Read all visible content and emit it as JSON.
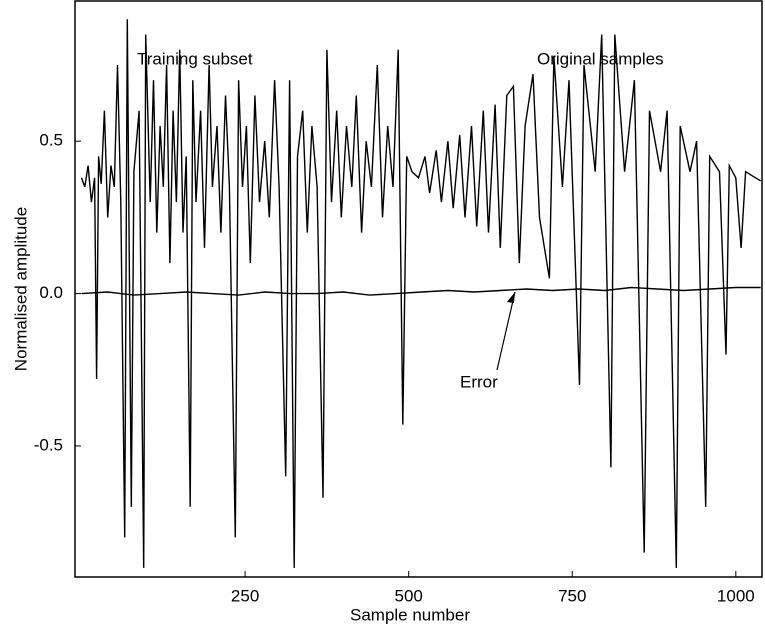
{
  "chart_data": {
    "type": "line",
    "x_label": "Sample number",
    "y_label": "Normalised amplitude",
    "annotations": [
      "Training subset"
    ],
    "xlim": [
      -10,
      1040
    ],
    "xticks": [
      250,
      500,
      750,
      1000
    ],
    "ylim": [
      -0.93,
      0.96
    ],
    "yticks": [
      0.5,
      {
        "value": 0,
        "label": "0.0"
      },
      -0.5
    ],
    "series": [
      {
        "name": "Original samples",
        "color": "#000000",
        "x": [
          0,
          5,
          10,
          15,
          20,
          23,
          26,
          30,
          35,
          40,
          45,
          50,
          55,
          60,
          66,
          70,
          76,
          80,
          88,
          95,
          98,
          105,
          110,
          115,
          120,
          125,
          130,
          135,
          140,
          145,
          150,
          155,
          160,
          166,
          170,
          175,
          182,
          188,
          195,
          200,
          207,
          213,
          220,
          226,
          235,
          240,
          246,
          252,
          258,
          265,
          272,
          280,
          287,
          295,
          302,
          312,
          318,
          325,
          330,
          338,
          345,
          352,
          360,
          369,
          375,
          382,
          390,
          397,
          405,
          413,
          420,
          428,
          435,
          443,
          452,
          460,
          468,
          476,
          484,
          491,
          497,
          505,
          515,
          525,
          532,
          542,
          550,
          560,
          568,
          578,
          586,
          596,
          604,
          614,
          622,
          632,
          640,
          650,
          660,
          669,
          678,
          690,
          700,
          715,
          722,
          735,
          745,
          761,
          768,
          785,
          795,
          809,
          815,
          830,
          845,
          860,
          868,
          885,
          895,
          909,
          915,
          930,
          940,
          954,
          960,
          975,
          985,
          990,
          1000,
          1008,
          1015,
          1030,
          1038
        ],
        "values": [
          0.38,
          0.35,
          0.42,
          0.3,
          0.38,
          -0.28,
          0.45,
          0.36,
          0.6,
          0.25,
          0.42,
          0.35,
          0.75,
          0.3,
          -0.8,
          0.9,
          -0.7,
          0.4,
          0.6,
          -0.9,
          0.85,
          0.3,
          0.7,
          0.2,
          0.55,
          0.35,
          0.75,
          0.1,
          0.6,
          0.3,
          0.8,
          0.2,
          0.45,
          -0.7,
          0.7,
          0.3,
          0.6,
          0.15,
          0.75,
          0.35,
          0.55,
          0.2,
          0.65,
          0.35,
          -0.8,
          0.7,
          0.35,
          0.55,
          0.1,
          0.65,
          0.3,
          0.5,
          0.25,
          0.7,
          0.35,
          -0.6,
          0.7,
          -0.9,
          0.45,
          0.6,
          0.2,
          0.55,
          0.35,
          -0.67,
          0.8,
          0.3,
          0.6,
          0.25,
          0.55,
          0.35,
          0.65,
          0.2,
          0.5,
          0.35,
          0.75,
          0.25,
          0.55,
          0.35,
          0.8,
          -0.43,
          0.45,
          0.4,
          0.38,
          0.45,
          0.33,
          0.47,
          0.3,
          0.5,
          0.28,
          0.52,
          0.25,
          0.55,
          0.22,
          0.6,
          0.2,
          0.62,
          0.15,
          0.65,
          0.68,
          0.1,
          0.55,
          0.72,
          0.25,
          0.05,
          0.78,
          0.35,
          0.7,
          -0.3,
          0.75,
          0.4,
          0.85,
          -0.57,
          0.85,
          0.4,
          0.7,
          -0.85,
          0.6,
          0.4,
          0.6,
          -0.9,
          0.55,
          0.4,
          0.5,
          -0.7,
          0.45,
          0.4,
          -0.2,
          0.42,
          0.38,
          0.15,
          0.4,
          0.38,
          0.37
        ]
      },
      {
        "name": "Error",
        "color": "#000000",
        "x": [
          0,
          40,
          80,
          120,
          160,
          200,
          240,
          280,
          320,
          360,
          400,
          440,
          480,
          520,
          560,
          600,
          640,
          680,
          720,
          760,
          800,
          840,
          880,
          920,
          960,
          1000,
          1038
        ],
        "values": [
          0.0,
          0.005,
          -0.005,
          0.0,
          0.005,
          0.0,
          -0.005,
          0.005,
          0.0,
          0.0,
          0.005,
          -0.005,
          0.0,
          0.005,
          0.01,
          0.005,
          0.01,
          0.015,
          0.01,
          0.015,
          0.01,
          0.02,
          0.015,
          0.01,
          0.015,
          0.02,
          0.02
        ]
      }
    ]
  }
}
